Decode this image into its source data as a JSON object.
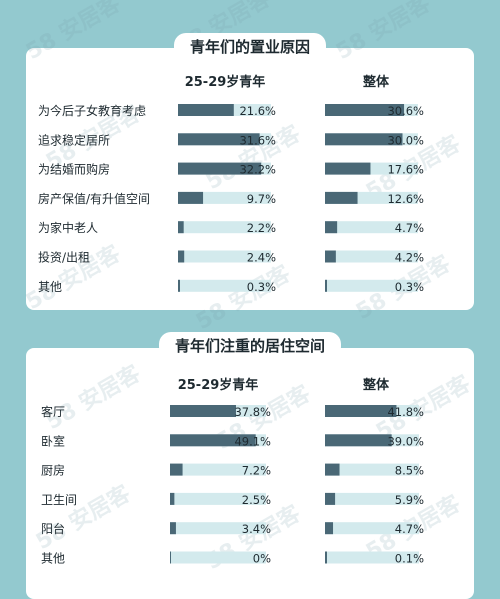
{
  "watermark": {
    "text": "58 安居客"
  },
  "colors": {
    "background": "#93c9cf",
    "bar_fill": "#4a6876",
    "bar_track": "#d3eaed",
    "text": "#1e2a30"
  },
  "chart_data": [
    {
      "type": "bar",
      "title": "青年们的置业原因",
      "categories": [
        "为今后子女教育考虑",
        "追求稳定居所",
        "为结婚而购房",
        "房产保值/有升值空间",
        "为家中老人",
        "投资/出租",
        "其他"
      ],
      "series": [
        {
          "name": "25-29岁青年",
          "values": [
            21.6,
            31.6,
            32.2,
            9.7,
            2.2,
            2.4,
            0.3
          ],
          "labels": [
            "21.6%",
            "31.6%",
            "32.2%",
            "9.7%",
            "2.2%",
            "2.4%",
            "0.3%"
          ]
        },
        {
          "name": "整体",
          "values": [
            30.6,
            30.0,
            17.6,
            12.6,
            4.7,
            4.2,
            0.3
          ],
          "labels": [
            "30.6%",
            "30.0%",
            "17.6%",
            "12.6%",
            "4.7%",
            "4.2%",
            "0.3%"
          ]
        }
      ],
      "xlim": [
        0,
        36
      ]
    },
    {
      "type": "bar",
      "title": "青年们注重的居住空间",
      "categories": [
        "客厅",
        "卧室",
        "厨房",
        "卫生间",
        "阳台",
        "其他"
      ],
      "series": [
        {
          "name": "25-29岁青年",
          "values": [
            37.8,
            49.1,
            7.2,
            2.5,
            3.4,
            0
          ],
          "labels": [
            "37.8%",
            "49.1%",
            "7.2%",
            "2.5%",
            "3.4%",
            "0%"
          ]
        },
        {
          "name": "整体",
          "values": [
            41.8,
            39.0,
            8.5,
            5.9,
            4.7,
            0.1
          ],
          "labels": [
            "41.8%",
            "39.0%",
            "8.5%",
            "5.9%",
            "4.7%",
            "0.1%"
          ]
        }
      ],
      "xlim": [
        0,
        55
      ]
    }
  ]
}
